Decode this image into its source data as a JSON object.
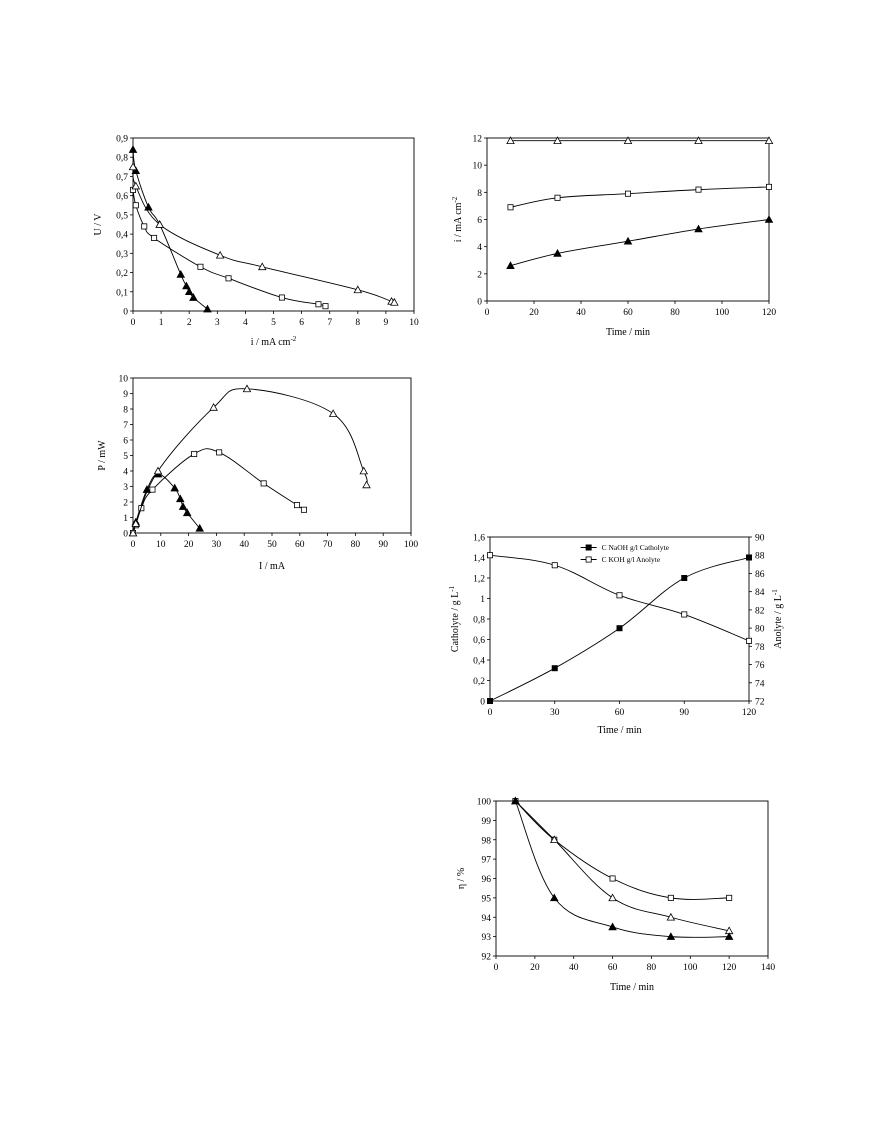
{
  "chart_data": [
    {
      "id": "uv",
      "type": "line",
      "xlabel": "i / mA cm",
      "xlabel_sup": "-2",
      "ylabel": "U / V",
      "xlim": [
        0,
        10
      ],
      "ylim": [
        0,
        0.9
      ],
      "xticks": [
        "0",
        "1",
        "2",
        "3",
        "4",
        "5",
        "6",
        "7",
        "8",
        "9",
        "10"
      ],
      "yticks": [
        "0",
        "0,1",
        "0,2",
        "0,3",
        "0,4",
        "0,5",
        "0,6",
        "0,7",
        "0,8",
        "0,9"
      ],
      "grid": false,
      "series": [
        {
          "marker": "triangle-filled",
          "x": [
            0,
            0.1,
            0.55,
            0.95,
            1.7,
            1.9,
            2.0,
            2.15,
            2.65
          ],
          "y": [
            0.84,
            0.73,
            0.54,
            0.45,
            0.19,
            0.13,
            0.1,
            0.07,
            0.01
          ]
        },
        {
          "marker": "square-open",
          "x": [
            0,
            0.1,
            0.4,
            0.75,
            2.4,
            3.4,
            5.3,
            6.6,
            6.85
          ],
          "y": [
            0.63,
            0.55,
            0.44,
            0.38,
            0.23,
            0.17,
            0.07,
            0.035,
            0.025
          ]
        },
        {
          "marker": "triangle-open",
          "x": [
            0,
            0.1,
            0.95,
            3.1,
            4.6,
            8.0,
            9.2,
            9.3
          ],
          "y": [
            0.75,
            0.65,
            0.45,
            0.29,
            0.23,
            0.11,
            0.05,
            0.045
          ]
        }
      ]
    },
    {
      "id": "itime",
      "type": "line",
      "xlabel": "Time / min",
      "ylabel": "i / mA cm",
      "ylabel_sup": "-2",
      "xlim": [
        0,
        120
      ],
      "ylim": [
        0,
        12
      ],
      "xticks": [
        "0",
        "20",
        "40",
        "60",
        "80",
        "100",
        "120"
      ],
      "yticks": [
        "0",
        "2",
        "4",
        "6",
        "8",
        "10",
        "12"
      ],
      "grid": false,
      "series": [
        {
          "marker": "triangle-open",
          "x": [
            10,
            30,
            60,
            90,
            120
          ],
          "y": [
            11.8,
            11.8,
            11.8,
            11.8,
            11.8
          ]
        },
        {
          "marker": "square-open",
          "x": [
            10,
            30,
            60,
            90,
            120
          ],
          "y": [
            6.9,
            7.6,
            7.9,
            8.2,
            8.4
          ]
        },
        {
          "marker": "triangle-filled",
          "x": [
            10,
            30,
            60,
            90,
            120
          ],
          "y": [
            2.6,
            3.5,
            4.4,
            5.3,
            6.0
          ]
        }
      ]
    },
    {
      "id": "power",
      "type": "line",
      "xlabel": "I / mA",
      "ylabel": "P / mW",
      "xlim": [
        0,
        100
      ],
      "ylim": [
        0,
        10
      ],
      "xticks": [
        "0",
        "10",
        "20",
        "30",
        "40",
        "50",
        "60",
        "70",
        "80",
        "90",
        "100"
      ],
      "yticks": [
        "0",
        "1",
        "2",
        "3",
        "4",
        "5",
        "6",
        "7",
        "8",
        "9",
        "10"
      ],
      "grid": false,
      "series": [
        {
          "marker": "triangle-filled",
          "x": [
            0,
            1,
            5,
            9,
            15,
            17,
            18,
            19.5,
            24
          ],
          "y": [
            0,
            0.7,
            2.8,
            3.8,
            2.9,
            2.2,
            1.7,
            1.3,
            0.3
          ]
        },
        {
          "marker": "square-open",
          "x": [
            0,
            1,
            3,
            7,
            22,
            31,
            47,
            59,
            61.5
          ],
          "y": [
            0,
            0.5,
            1.6,
            2.8,
            5.1,
            5.2,
            3.2,
            1.8,
            1.5
          ]
        },
        {
          "marker": "triangle-open",
          "x": [
            0,
            1,
            9,
            29,
            41,
            72,
            83,
            84
          ],
          "y": [
            0,
            0.6,
            4.0,
            8.1,
            9.3,
            7.7,
            4.0,
            3.1
          ]
        }
      ]
    },
    {
      "id": "conc",
      "type": "line",
      "xlabel": "Time / min",
      "ylabel": "Catholyte / g L",
      "ylabel_sup": "-1",
      "y2label": "Anolyte / g L",
      "y2label_sup": "-1",
      "xlim": [
        0,
        120
      ],
      "ylim": [
        0,
        1.6
      ],
      "y2lim": [
        72,
        90
      ],
      "xticks": [
        "0",
        "30",
        "60",
        "90",
        "120"
      ],
      "yticks": [
        "0",
        "0,2",
        "0,4",
        "0,6",
        "0,8",
        "1",
        "1,2",
        "1,4",
        "1,6"
      ],
      "y2ticks": [
        "72",
        "74",
        "76",
        "78",
        "80",
        "82",
        "84",
        "86",
        "88",
        "90"
      ],
      "legend_position": "top-right",
      "grid": false,
      "series": [
        {
          "name": "C NaOH g/l Catholyte",
          "axis": "left",
          "marker": "square-filled",
          "x": [
            0,
            30,
            60,
            90,
            120
          ],
          "y": [
            0,
            0.32,
            0.71,
            1.2,
            1.4
          ]
        },
        {
          "name": "C KOH g/l Anolyte",
          "axis": "right",
          "marker": "square-open",
          "x": [
            0,
            30,
            60,
            90,
            120
          ],
          "y": [
            88.0,
            86.9,
            83.6,
            81.5,
            78.6
          ]
        }
      ]
    },
    {
      "id": "eta",
      "type": "line",
      "xlabel": "Time / min",
      "ylabel": "η / %",
      "xlim": [
        0,
        140
      ],
      "ylim": [
        92,
        100
      ],
      "xticks": [
        "0",
        "20",
        "40",
        "60",
        "80",
        "100",
        "120",
        "140"
      ],
      "yticks": [
        "92",
        "93",
        "94",
        "95",
        "96",
        "97",
        "98",
        "99",
        "100"
      ],
      "grid": false,
      "series": [
        {
          "marker": "square-open",
          "x": [
            10,
            30,
            60,
            90,
            120
          ],
          "y": [
            100,
            98,
            96,
            95,
            95
          ]
        },
        {
          "marker": "triangle-open",
          "x": [
            10,
            30,
            60,
            90,
            120
          ],
          "y": [
            100,
            98,
            95,
            94,
            93.3
          ]
        },
        {
          "marker": "triangle-filled",
          "x": [
            10,
            30,
            60,
            90,
            120
          ],
          "y": [
            100,
            95,
            93.5,
            93,
            93
          ]
        }
      ]
    }
  ]
}
